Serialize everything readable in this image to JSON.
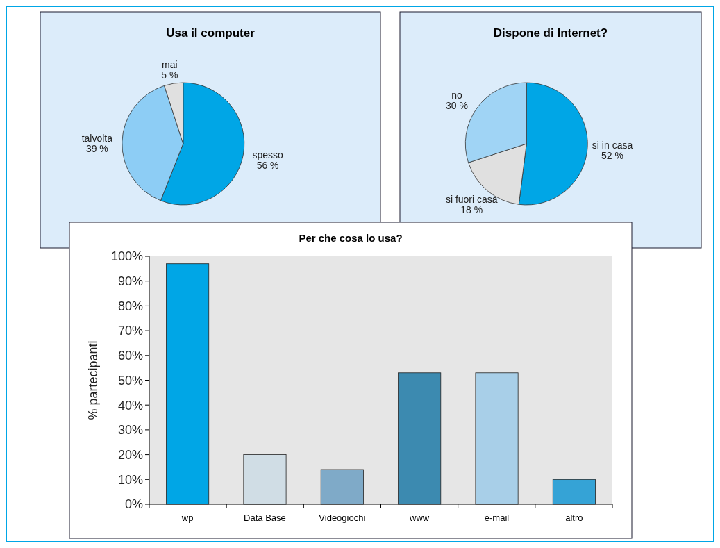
{
  "chart_data": [
    {
      "type": "pie",
      "title": "Usa il computer",
      "categories": [
        "spesso",
        "talvolta",
        "mai"
      ],
      "values": [
        56,
        39,
        5
      ],
      "colors": [
        "#00a6e6",
        "#8dcdf5",
        "#e0e0e0"
      ],
      "value_labels": [
        "56 %",
        "39 %",
        "5 %"
      ]
    },
    {
      "type": "pie",
      "title": "Dispone di Internet?",
      "categories": [
        "si in casa",
        "si fuori casa",
        "no"
      ],
      "values": [
        52,
        18,
        30
      ],
      "colors": [
        "#00a6e6",
        "#e0e0e0",
        "#a0d4f5"
      ],
      "value_labels": [
        "52 %",
        "18 %",
        "30 %"
      ]
    },
    {
      "type": "bar",
      "title": "Per che cosa lo usa?",
      "ylabel": "% partecipanti",
      "categories": [
        "wp",
        "Data Base",
        "Videogiochi",
        "www",
        "e-mail",
        "altro"
      ],
      "values": [
        97,
        20,
        14,
        53,
        53,
        10
      ],
      "colors": [
        "#00a6e6",
        "#d0dde5",
        "#7faac8",
        "#3c8ab0",
        "#a8cfe8",
        "#35a3d6"
      ],
      "ylim": [
        0,
        100
      ],
      "yticks": [
        {
          "value": 0,
          "label": "0%"
        },
        {
          "value": 10,
          "label": "10%"
        },
        {
          "value": 20,
          "label": "20%"
        },
        {
          "value": 30,
          "label": "30%"
        },
        {
          "value": 40,
          "label": "40%"
        },
        {
          "value": 50,
          "label": "50%"
        },
        {
          "value": 60,
          "label": "60%"
        },
        {
          "value": 70,
          "label": "70%"
        },
        {
          "value": 80,
          "label": "80%"
        },
        {
          "value": 90,
          "label": "90%"
        },
        {
          "value": 100,
          "label": "100%"
        }
      ]
    }
  ]
}
